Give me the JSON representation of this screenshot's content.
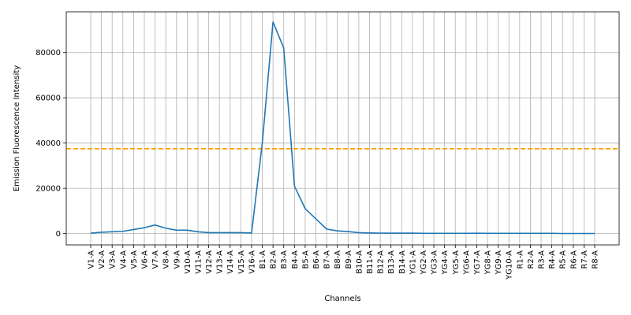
{
  "chart_data": {
    "type": "line",
    "title": "",
    "xlabel": "Channels",
    "ylabel": "Emission Fluorescence Intensity",
    "ylim": [
      -5000,
      98000
    ],
    "yticks": [
      0,
      20000,
      40000,
      60000,
      80000
    ],
    "ytick_labels": [
      "0",
      "20000",
      "40000",
      "60000",
      "80000"
    ],
    "grid": true,
    "categories": [
      "V1-A",
      "V2-A",
      "V3-A",
      "V4-A",
      "V5-A",
      "V6-A",
      "V7-A",
      "V8-A",
      "V9-A",
      "V10-A",
      "V11-A",
      "V12-A",
      "V13-A",
      "V14-A",
      "V15-A",
      "V16-A",
      "B1-A",
      "B2-A",
      "B3-A",
      "B4-A",
      "B5-A",
      "B6-A",
      "B7-A",
      "B8-A",
      "B9-A",
      "B10-A",
      "B11-A",
      "B12-A",
      "B13-A",
      "B14-A",
      "YG1-A",
      "YG2-A",
      "YG3-A",
      "YG4-A",
      "YG5-A",
      "YG6-A",
      "YG7-A",
      "YG8-A",
      "YG9-A",
      "YG10-A",
      "R1-A",
      "R2-A",
      "R3-A",
      "R4-A",
      "R5-A",
      "R6-A",
      "R7-A",
      "R8-A"
    ],
    "series": [
      {
        "color": "#1f77b4",
        "values": [
          200,
          600,
          800,
          1000,
          1800,
          2600,
          3800,
          2400,
          1500,
          1500,
          800,
          400,
          400,
          400,
          400,
          300,
          40000,
          93500,
          82000,
          21000,
          11000,
          6500,
          2000,
          1200,
          900,
          400,
          300,
          200,
          200,
          200,
          200,
          100,
          100,
          100,
          100,
          100,
          150,
          100,
          100,
          100,
          100,
          100,
          100,
          100,
          50,
          50,
          50,
          50
        ]
      }
    ],
    "threshold": {
      "value": 37500,
      "color": "#ff9f00",
      "style": "dashed"
    }
  }
}
